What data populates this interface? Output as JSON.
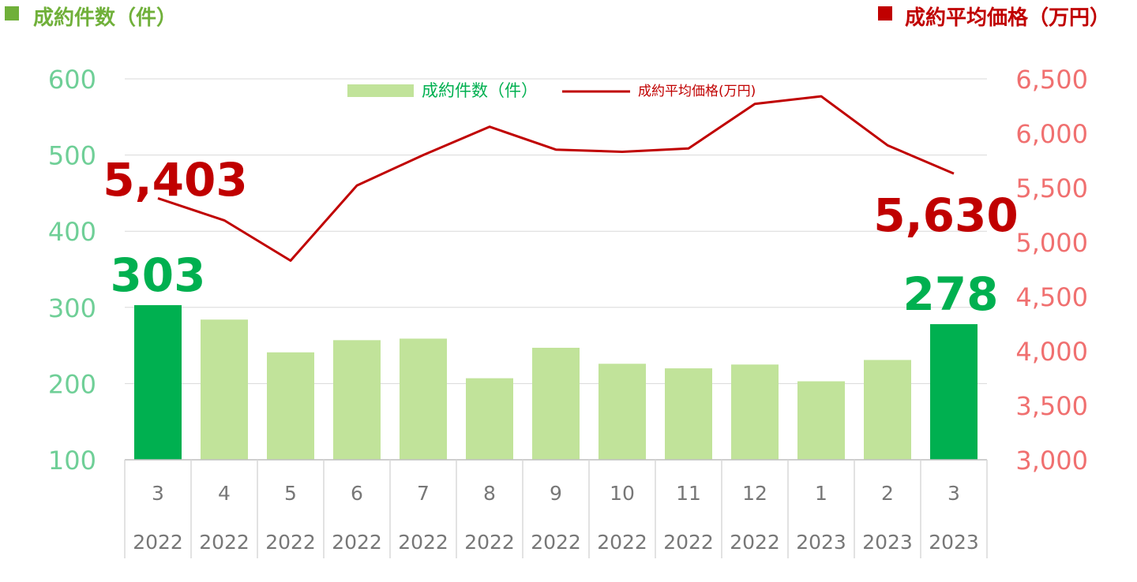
{
  "header": {
    "left_title": "成約件数（件）",
    "right_title": "成約平均価格（万円）"
  },
  "legend": {
    "bar_label": "成約件数（件）",
    "line_label": "成約平均価格(万円)"
  },
  "colors": {
    "bar_light": "#c1e39a",
    "bar_highlight": "#00b050",
    "line": "#c00000",
    "left_axis": "#6fcf97",
    "right_axis": "#f07070",
    "left_square": "#70b03a",
    "right_square": "#c00000",
    "left_title": "#70b03a",
    "right_title": "#c00000",
    "tick_text": "#777777"
  },
  "chart_data": {
    "type": "bar",
    "categories": [
      "3",
      "4",
      "5",
      "6",
      "7",
      "8",
      "9",
      "10",
      "11",
      "12",
      "1",
      "2",
      "3"
    ],
    "years": [
      "2022",
      "2022",
      "2022",
      "2022",
      "2022",
      "2022",
      "2022",
      "2022",
      "2022",
      "2022",
      "2023",
      "2023",
      "2023"
    ],
    "series": [
      {
        "name": "成約件数（件）",
        "type": "bar",
        "axis": "left",
        "values": [
          303,
          284,
          241,
          257,
          259,
          207,
          247,
          226,
          220,
          225,
          203,
          231,
          278
        ],
        "highlight_indices": [
          0,
          12
        ]
      },
      {
        "name": "成約平均価格(万円)",
        "type": "line",
        "axis": "right",
        "values": [
          5403,
          5200,
          4830,
          5520,
          5800,
          6060,
          5850,
          5830,
          5860,
          6270,
          6340,
          5890,
          5630
        ]
      }
    ],
    "left_axis": {
      "range": [
        100,
        600
      ],
      "ticks": [
        "100",
        "200",
        "300",
        "400",
        "500",
        "600"
      ]
    },
    "right_axis": {
      "range": [
        3000,
        6500
      ],
      "ticks": [
        "3,000",
        "3,500",
        "4,000",
        "4,500",
        "5,000",
        "5,500",
        "6,000",
        "6,500"
      ]
    },
    "callouts": {
      "first_bar": "303",
      "last_bar": "278",
      "first_price": "5,403",
      "last_price": "5,630"
    },
    "grid": true,
    "legend_position": "top-center"
  }
}
